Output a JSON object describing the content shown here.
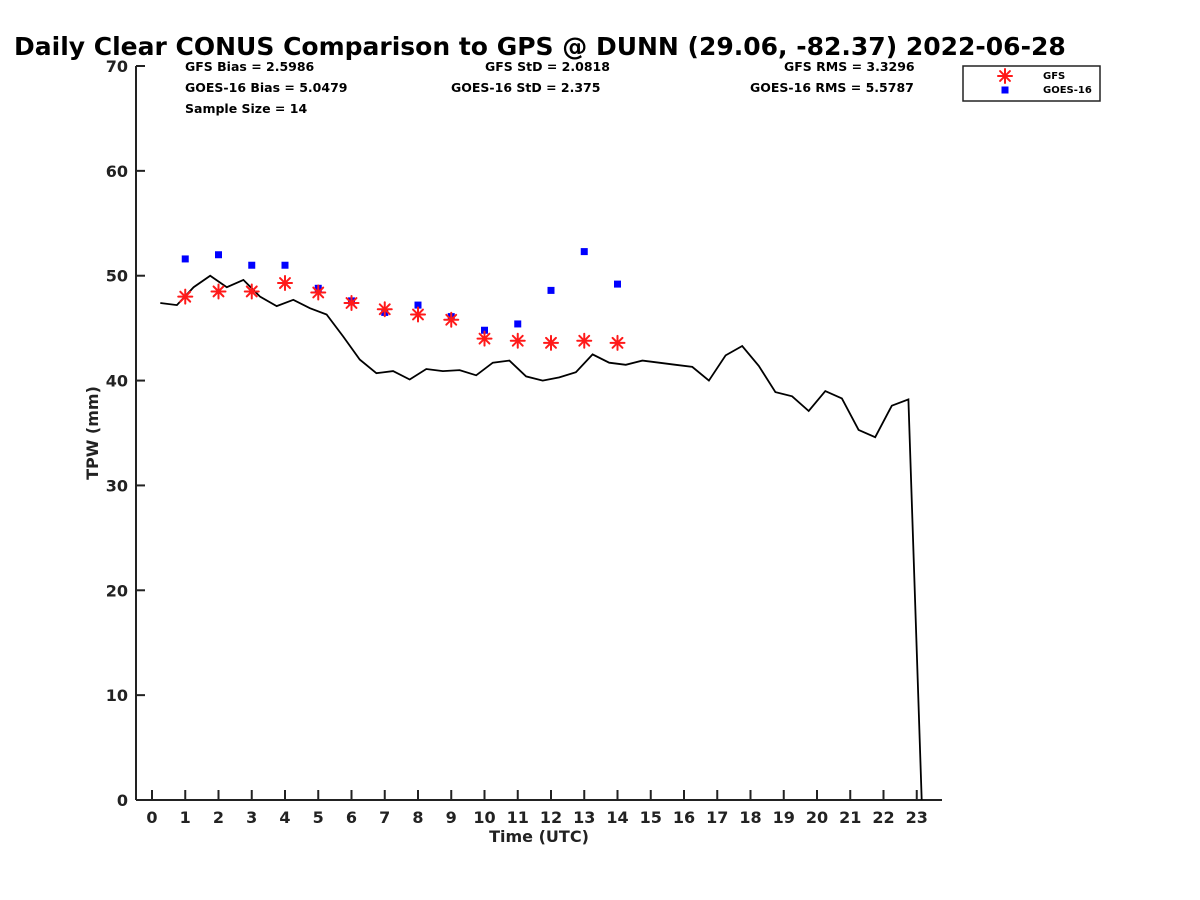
{
  "chart_data": {
    "type": "line",
    "title": "Daily Clear CONUS Comparison to GPS @ DUNN (29.06, -82.37) 2022-06-28",
    "xlabel": "Time (UTC)",
    "ylabel": "TPW (mm)",
    "xlim": [
      -0.5,
      23.7
    ],
    "ylim": [
      0,
      70
    ],
    "xticks": [
      0,
      1,
      2,
      3,
      4,
      5,
      6,
      7,
      8,
      9,
      10,
      11,
      12,
      13,
      14,
      15,
      16,
      17,
      18,
      19,
      20,
      21,
      22,
      23
    ],
    "yticks": [
      0,
      10,
      20,
      30,
      40,
      50,
      60,
      70
    ],
    "grid": false,
    "legend_position": "top-right",
    "stats": {
      "gfs_bias": "GFS Bias = 2.5986",
      "goes_bias": "GOES-16 Bias = 5.0479",
      "sample_size": "Sample Size = 14",
      "gfs_std": "GFS StD = 2.0818",
      "goes_std": "GOES-16 StD = 2.375",
      "gfs_rms": "GFS RMS = 3.3296",
      "goes_rms": "GOES-16 RMS = 5.5787"
    },
    "series": [
      {
        "name": "GFS",
        "marker": "asterisk",
        "color": "#ff1a1a",
        "x": [
          1,
          2,
          3,
          4,
          5,
          6,
          7,
          8,
          9,
          10,
          11,
          12,
          13,
          14
        ],
        "y": [
          48.0,
          48.5,
          48.5,
          49.3,
          48.4,
          47.4,
          46.8,
          46.3,
          45.8,
          44.0,
          43.8,
          43.6,
          43.8,
          43.6
        ]
      },
      {
        "name": "GOES-16",
        "marker": "square",
        "color": "#0000ff",
        "x": [
          1,
          2,
          3,
          4,
          5,
          6,
          7,
          8,
          9,
          10,
          11,
          12,
          13,
          14
        ],
        "y": [
          51.6,
          52.0,
          51.0,
          51.0,
          48.8,
          47.6,
          46.5,
          47.2,
          46.1,
          44.8,
          45.4,
          48.6,
          52.3,
          49.2
        ]
      },
      {
        "name": "GPS",
        "marker": "line",
        "color": "#000000",
        "x": [
          0.25,
          0.75,
          1.25,
          1.75,
          2.25,
          2.75,
          3.25,
          3.75,
          4.25,
          4.75,
          5.25,
          5.75,
          6.25,
          6.75,
          7.25,
          7.75,
          8.25,
          8.75,
          9.25,
          9.75,
          10.25,
          10.75,
          11.25,
          11.75,
          12.25,
          12.75,
          13.25,
          13.75,
          14.25,
          14.75,
          15.25,
          15.75,
          16.25,
          16.75,
          17.25,
          17.75,
          18.25,
          18.75,
          19.25,
          19.75,
          20.25,
          20.75,
          21.25,
          21.75,
          22.25,
          22.75,
          23.15
        ],
        "y": [
          47.4,
          47.2,
          48.9,
          50.0,
          48.9,
          49.6,
          48.0,
          47.1,
          47.7,
          46.9,
          46.3,
          44.2,
          42.0,
          40.7,
          40.9,
          40.1,
          41.1,
          40.9,
          41.0,
          40.5,
          41.7,
          41.9,
          40.4,
          40.0,
          40.3,
          40.8,
          42.5,
          41.7,
          41.5,
          41.9,
          41.7,
          41.5,
          41.3,
          40.0,
          42.4,
          43.3,
          41.4,
          38.9,
          38.5,
          37.1,
          39.0,
          38.3,
          35.3,
          34.6,
          37.6,
          38.2,
          0.0
        ]
      }
    ]
  }
}
